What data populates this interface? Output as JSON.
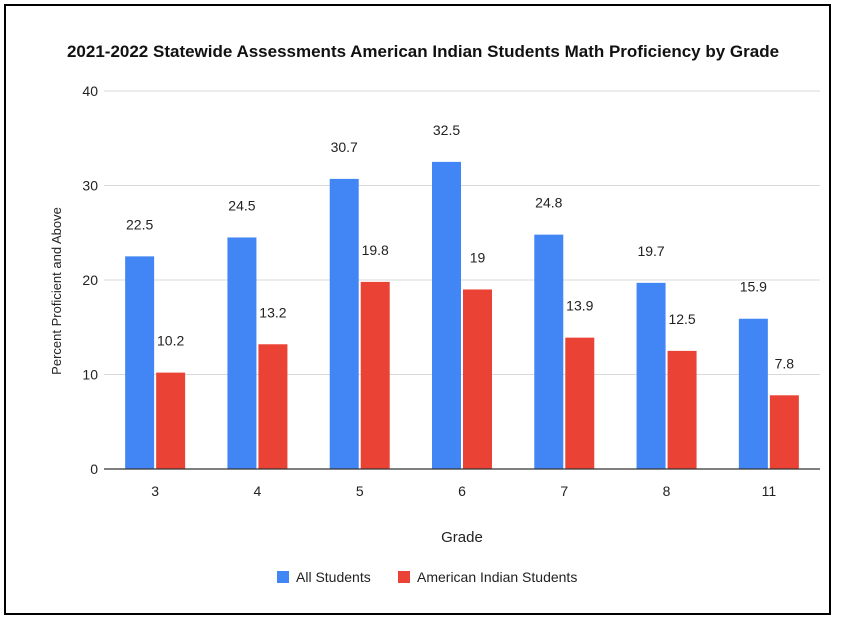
{
  "chart_data": {
    "type": "bar",
    "title": "2021-2022 Statewide Assessments American Indian Students Math Proficiency by Grade",
    "xlabel": "Grade",
    "ylabel": "Percent Proficient and Above",
    "categories": [
      "3",
      "4",
      "5",
      "6",
      "7",
      "8",
      "11"
    ],
    "series": [
      {
        "name": "All Students",
        "values": [
          22.5,
          24.5,
          30.7,
          32.5,
          24.8,
          19.7,
          15.9
        ],
        "color": "#4285f4"
      },
      {
        "name": "American Indian Students",
        "values": [
          10.2,
          13.2,
          19.8,
          19,
          13.9,
          12.5,
          7.8
        ],
        "color": "#ea4335"
      }
    ],
    "ylim": [
      0,
      40
    ],
    "yticks": [
      0,
      10,
      20,
      30,
      40
    ],
    "grid": true,
    "legend_position": "bottom",
    "data_labels": true
  }
}
